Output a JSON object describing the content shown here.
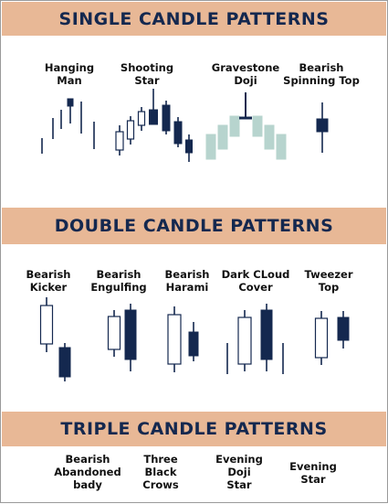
{
  "colors": {
    "band": "#e8b896",
    "title": "#14284f",
    "bearish_candle": "#14284f",
    "bullish_candle_fill": "#ffffff",
    "bullish_candle_stroke": "#14284f",
    "doji_context_candle": "#b7d4ce"
  },
  "sections": [
    {
      "title": "SINGLE CANDLE PATTERNS",
      "patterns": [
        {
          "label": "Hanging\nMan"
        },
        {
          "label": "Shooting\nStar"
        },
        {
          "label": "Gravestone\nDoji"
        },
        {
          "label": "Bearish\nSpinning Top"
        }
      ]
    },
    {
      "title": "DOUBLE CANDLE PATTERNS",
      "patterns": [
        {
          "label": "Bearish\nKicker"
        },
        {
          "label": "Bearish\nEngulfing"
        },
        {
          "label": "Bearish\nHarami"
        },
        {
          "label": "Dark CLoud\nCover"
        },
        {
          "label": "Tweezer\nTop"
        }
      ]
    },
    {
      "title": "TRIPLE CANDLE PATTERNS",
      "patterns": [
        {
          "label": "Bearish\nAbandoned\nbady"
        },
        {
          "label": "Three\nBlack\nCrows"
        },
        {
          "label": "Evening\nDoji\nStar"
        },
        {
          "label": "Evening\nStar"
        }
      ]
    }
  ]
}
